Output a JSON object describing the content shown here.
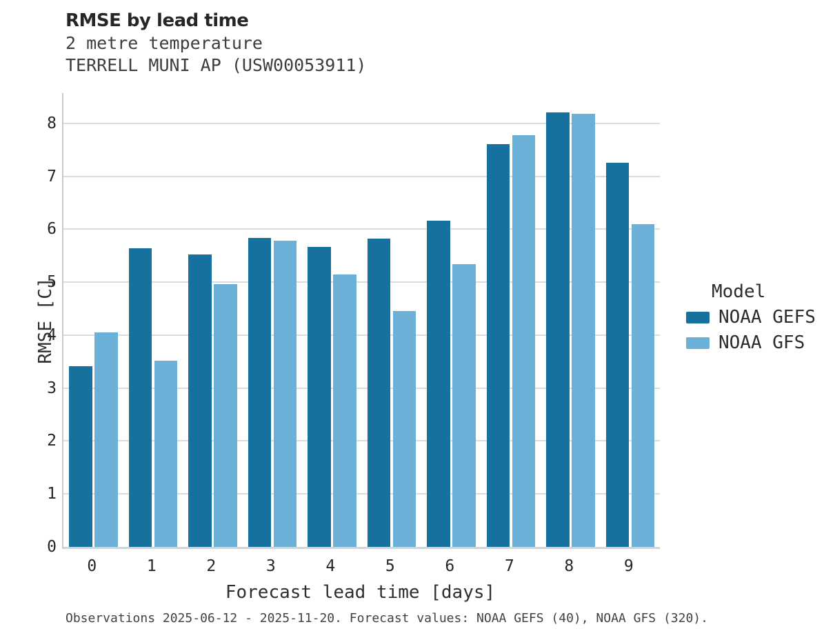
{
  "title": "RMSE by lead time",
  "subtitle_line1": "2 metre temperature",
  "subtitle_line2": "TERRELL MUNI AP (USW00053911)",
  "footer": "Observations 2025-06-12 - 2025-11-20. Forecast values: NOAA GEFS (40), NOAA GFS (320).",
  "legend": {
    "title": "Model",
    "items": [
      {
        "label": "NOAA GEFS",
        "color": "#17719E"
      },
      {
        "label": "NOAA GFS",
        "color": "#6BB0D7"
      }
    ]
  },
  "colors": {
    "bar_dark": "#17719E",
    "bar_light": "#6BB0D7",
    "gridline": "#DCDCDC",
    "axis": "#C9C9C9",
    "title_text": "#262626",
    "body_text": "#2B2B2B",
    "footer_text": "#414141"
  },
  "chart_data": {
    "type": "bar",
    "title": "RMSE by lead time",
    "subtitle": [
      "2 metre temperature",
      "TERRELL MUNI AP (USW00053911)"
    ],
    "categories": [
      "0",
      "1",
      "2",
      "3",
      "4",
      "5",
      "6",
      "7",
      "8",
      "9"
    ],
    "series": [
      {
        "name": "NOAA GEFS",
        "color": "#17719E",
        "values": [
          3.41,
          5.64,
          5.52,
          5.83,
          5.67,
          5.82,
          6.16,
          7.6,
          8.21,
          7.25
        ]
      },
      {
        "name": "NOAA GFS",
        "color": "#6BB0D7",
        "values": [
          4.05,
          3.52,
          4.96,
          5.78,
          5.15,
          4.46,
          5.34,
          7.77,
          8.18,
          6.1
        ]
      }
    ],
    "xlabel": "Forecast lead time [days]",
    "ylabel": "RMSE [C]",
    "ylim": [
      0,
      8.57
    ],
    "yticks": [
      0,
      1,
      2,
      3,
      4,
      5,
      6,
      7,
      8
    ],
    "grid": true,
    "legend_position": "right",
    "legend_title": "Model",
    "caption": "Observations 2025-06-12 - 2025-11-20. Forecast values: NOAA GEFS (40), NOAA GFS (320)."
  }
}
